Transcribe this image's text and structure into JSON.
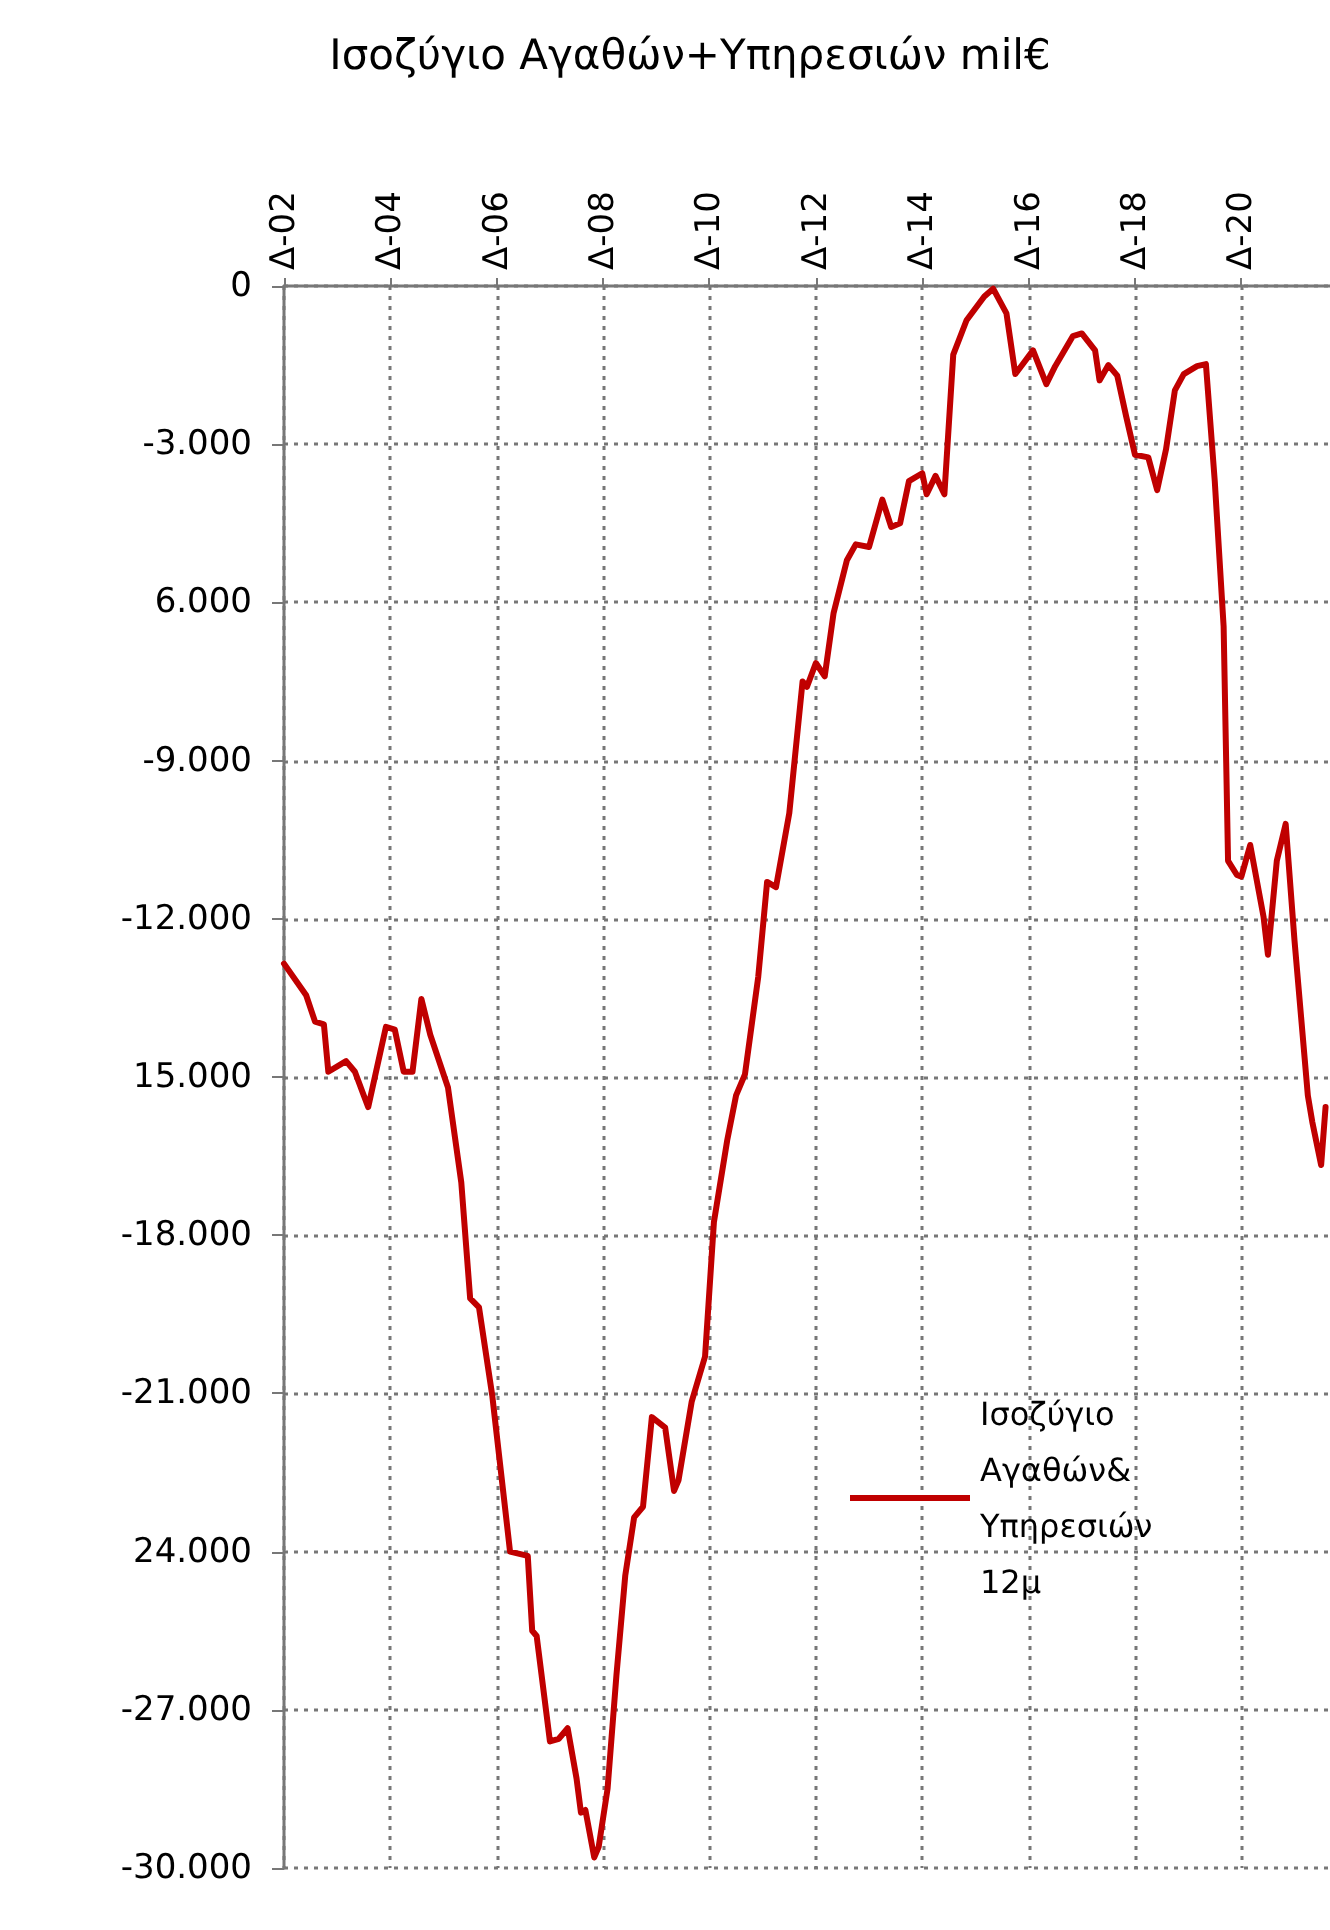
{
  "chart_data": {
    "type": "line",
    "title": "Ισοζύγιο Αγαθών+Υπηρεσιών mil€",
    "x": [
      "2002-12",
      "2003-05",
      "2003-07",
      "2003-09",
      "2003-10",
      "2004-02",
      "2004-04",
      "2004-06",
      "2004-07",
      "2004-11",
      "2005-01",
      "2005-03",
      "2005-05",
      "2005-07",
      "2005-09",
      "2006-01",
      "2006-04",
      "2006-06",
      "2006-08",
      "2006-11",
      "2007-03",
      "2007-07",
      "2007-08",
      "2007-09",
      "2007-12",
      "2008-02",
      "2008-04",
      "2008-06",
      "2008-07",
      "2008-08",
      "2008-10",
      "2008-11",
      "2009-01",
      "2009-03",
      "2009-05",
      "2009-07",
      "2009-09",
      "2009-11",
      "2010-02",
      "2010-04",
      "2010-05",
      "2010-08",
      "2010-11",
      "2011-01",
      "2011-04",
      "2011-06",
      "2011-08",
      "2011-11",
      "2012-01",
      "2012-03",
      "2012-06",
      "2012-09",
      "2012-10",
      "2012-12",
      "2013-02",
      "2013-04",
      "2013-07",
      "2013-09",
      "2013-12",
      "2014-03",
      "2014-05",
      "2014-07",
      "2014-09",
      "2014-12",
      "2015-01",
      "2015-03",
      "2015-05",
      "2015-07",
      "2015-10",
      "2016-02",
      "2016-04",
      "2016-07",
      "2016-09",
      "2017-01",
      "2017-04",
      "2017-06",
      "2017-10",
      "2017-12",
      "2018-03",
      "2018-04",
      "2018-06",
      "2018-08",
      "2018-10",
      "2018-12",
      "2019-03",
      "2019-05",
      "2019-07",
      "2019-09",
      "2019-11",
      "2020-02",
      "2020-04",
      "2020-06",
      "2020-08",
      "2020-09",
      "2020-11",
      "2020-12",
      "2021-02",
      "2021-05",
      "2021-06",
      "2021-08",
      "2021-10",
      "2021-12",
      "2022-03",
      "2022-04",
      "2022-06",
      "2022-07"
    ],
    "series": [
      {
        "name": "Ισοζύγιο Αγαθών& Υπηρεσιών 12μ",
        "color": "#c00000",
        "values": [
          -12850,
          -13450,
          -13950,
          -14000,
          -14900,
          -14700,
          -14900,
          -15350,
          -15570,
          -14050,
          -14100,
          -14900,
          -14900,
          -13520,
          -14200,
          -15200,
          -17000,
          -19200,
          -19370,
          -21050,
          -24000,
          -24080,
          -25500,
          -25600,
          -27600,
          -27550,
          -27350,
          -28300,
          -28950,
          -28900,
          -29800,
          -29600,
          -28500,
          -26350,
          -24450,
          -23350,
          -23150,
          -21450,
          -21650,
          -22850,
          -22650,
          -21150,
          -20300,
          -17750,
          -16200,
          -15350,
          -14950,
          -13100,
          -11300,
          -11400,
          -10000,
          -7500,
          -7600,
          -7150,
          -7400,
          -6200,
          -5200,
          -4900,
          -4950,
          -4050,
          -4570,
          -4500,
          -3700,
          -3550,
          -3950,
          -3600,
          -3950,
          -1300,
          -650,
          -200,
          -50,
          -520,
          -1670,
          -1220,
          -1860,
          -1520,
          -950,
          -900,
          -1220,
          -1790,
          -1500,
          -1700,
          -2470,
          -3200,
          -3250,
          -3870,
          -3100,
          -1980,
          -1670,
          -1520,
          -1480,
          -3700,
          -6460,
          -10900,
          -11170,
          -11200,
          -10600,
          -11960,
          -12680,
          -10900,
          -10200,
          -12420,
          -15350,
          -15850,
          -16670,
          -15570
        ]
      }
    ],
    "xlim": [
      "2002-12",
      "2022-08"
    ],
    "xticks": [
      {
        "value": "2002-12",
        "label": "Δ-02"
      },
      {
        "value": "2004-12",
        "label": "Δ-04"
      },
      {
        "value": "2006-12",
        "label": "Δ-06"
      },
      {
        "value": "2008-12",
        "label": "Δ-08"
      },
      {
        "value": "2010-12",
        "label": "Δ-10"
      },
      {
        "value": "2012-12",
        "label": "Δ-12"
      },
      {
        "value": "2014-12",
        "label": "Δ-14"
      },
      {
        "value": "2016-12",
        "label": "Δ-16"
      },
      {
        "value": "2018-12",
        "label": "Δ-18"
      },
      {
        "value": "2020-12",
        "label": "Δ-20"
      }
    ],
    "ylim": [
      -30000,
      0
    ],
    "yticks": [
      {
        "value": 0,
        "label": "0"
      },
      {
        "value": -3000,
        "label": "-3.000"
      },
      {
        "value": -6000,
        "label": "6.000"
      },
      {
        "value": -9000,
        "label": "-9.000"
      },
      {
        "value": -12000,
        "label": "-12.000"
      },
      {
        "value": -15000,
        "label": "15.000"
      },
      {
        "value": -18000,
        "label": "-18.000"
      },
      {
        "value": -21000,
        "label": "-21.000"
      },
      {
        "value": -24000,
        "label": "24.000"
      },
      {
        "value": -27000,
        "label": "-27.000"
      },
      {
        "value": -30000,
        "label": "-30.000"
      }
    ],
    "grid": true,
    "legend": "right",
    "marker": "none",
    "line_style": "solid"
  }
}
